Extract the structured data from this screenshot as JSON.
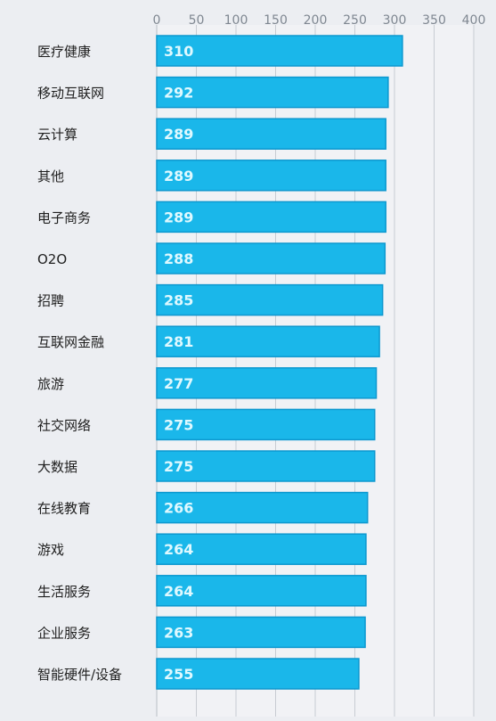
{
  "chart_data": {
    "type": "bar",
    "orientation": "horizontal",
    "categories": [
      "医疗健康",
      "移动互联网",
      "云计算",
      "其他",
      "电子商务",
      "O2O",
      "招聘",
      "互联网金融",
      "旅游",
      "社交网络",
      "大数据",
      "在线教育",
      "游戏",
      "生活服务",
      "企业服务",
      "智能硬件/设备"
    ],
    "values": [
      310,
      292,
      289,
      289,
      289,
      288,
      285,
      281,
      277,
      275,
      275,
      266,
      264,
      264,
      263,
      255
    ],
    "x_ticks": [
      "0",
      "50",
      "100",
      "150",
      "200",
      "250",
      "300",
      "350",
      "400"
    ],
    "xlim": [
      0,
      400
    ],
    "grid": true,
    "legend": false,
    "title": "",
    "xlabel": "",
    "ylabel": "",
    "colors": {
      "bar_fill": "#1ab7ea",
      "bar_stroke": "#0d98cf",
      "bar_text": "#dff9ff",
      "grid": "#c8ccd2",
      "axis_text": "#7f8791",
      "label_text": "#1f1f1f",
      "background": "#eceef2"
    }
  }
}
